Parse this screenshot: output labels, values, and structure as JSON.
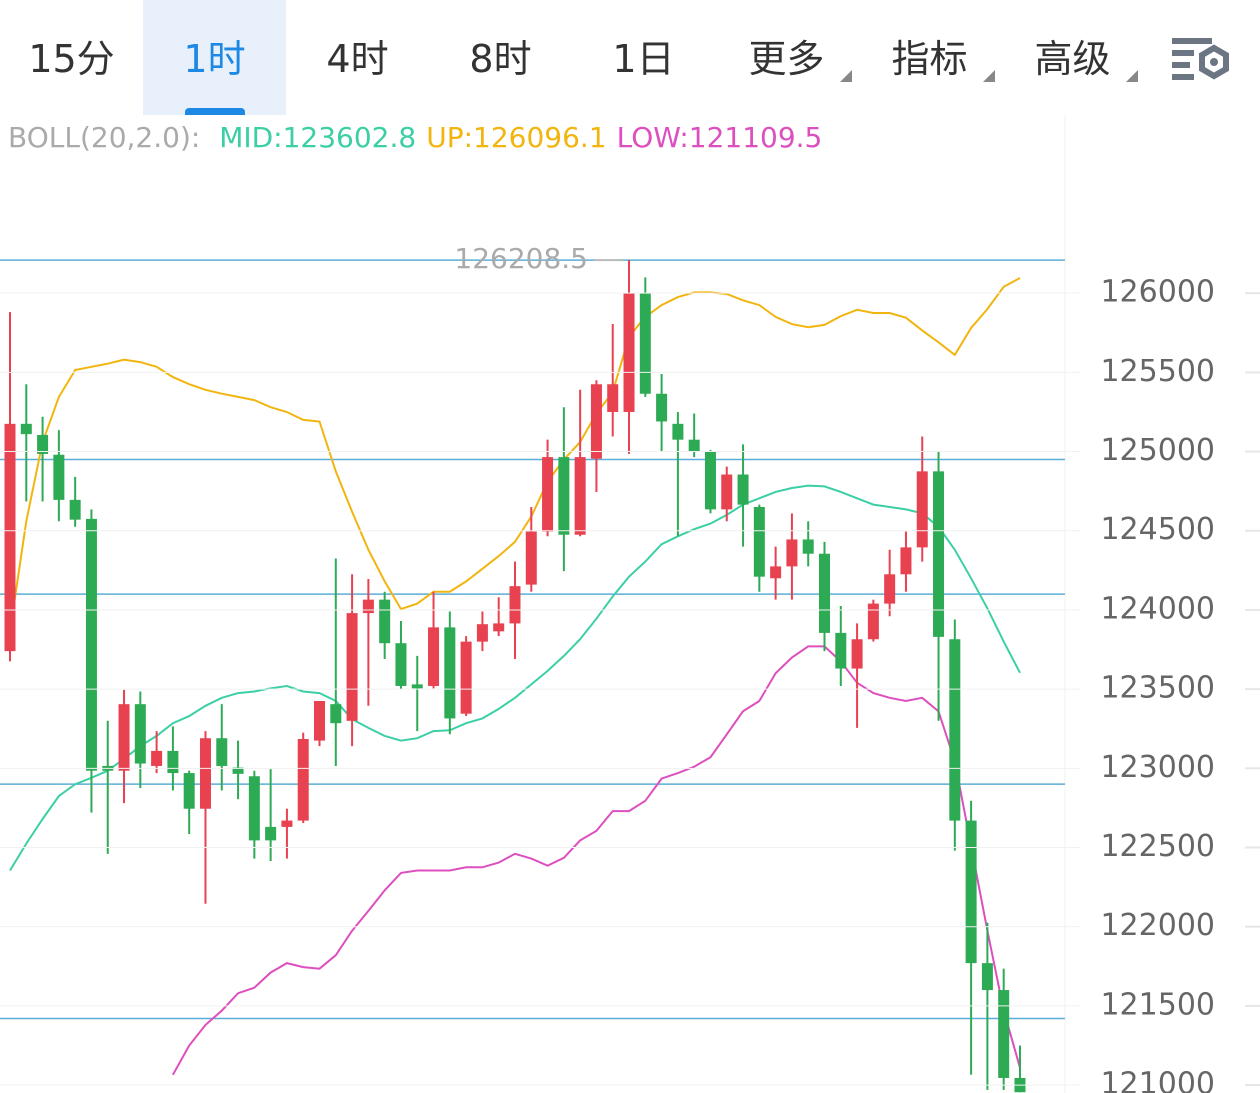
{
  "tabs": [
    {
      "label": "15分",
      "dropdown": false
    },
    {
      "label": "1时",
      "dropdown": false
    },
    {
      "label": "4时",
      "dropdown": false
    },
    {
      "label": "8时",
      "dropdown": false
    },
    {
      "label": "1日",
      "dropdown": false
    },
    {
      "label": "更多",
      "dropdown": true
    },
    {
      "label": "指标",
      "dropdown": true
    },
    {
      "label": "高级",
      "dropdown": true
    }
  ],
  "active_tab": 1,
  "chart_data": {
    "type": "candlestick",
    "indicator_label": "BOLL(20,2.0):",
    "up_color": "#e8414f",
    "down_color": "#2dab54",
    "open": [
      123740,
      125175,
      125105,
      124980,
      124695,
      124575,
      123015,
      122985,
      123405,
      123015,
      123110,
      122970,
      122745,
      123190,
      123005,
      122950,
      122630,
      122630,
      122670,
      123175,
      123405,
      123300,
      123980,
      124065,
      123790,
      123530,
      123520,
      123890,
      123345,
      123800,
      123865,
      123915,
      124160,
      124495,
      124965,
      124475,
      124955,
      125250,
      125250,
      126000,
      125365,
      125175,
      125075,
      125000,
      124635,
      124855,
      124650,
      124200,
      124275,
      124445,
      124355,
      123855,
      123630,
      123815,
      124040,
      124225,
      124395,
      124875,
      123815,
      122670,
      121770,
      121600,
      121045
    ],
    "high": [
      125880,
      125425,
      125220,
      125135,
      124840,
      124635,
      123300,
      123495,
      123485,
      123235,
      123265,
      122985,
      123235,
      123405,
      123175,
      122985,
      122995,
      122745,
      123225,
      123425,
      124325,
      124225,
      124195,
      124115,
      123930,
      123710,
      124115,
      123990,
      123835,
      123990,
      124080,
      124305,
      124650,
      125075,
      125280,
      125390,
      125450,
      125805,
      126208.5,
      126100,
      125490,
      125250,
      125240,
      125010,
      124905,
      125045,
      124665,
      124400,
      124610,
      124560,
      124430,
      124025,
      123915,
      124065,
      124380,
      124495,
      125095,
      125000,
      123940,
      122795,
      122025,
      121735,
      121250
    ],
    "low": [
      123675,
      124685,
      124685,
      124560,
      124525,
      122720,
      122460,
      122780,
      122875,
      122970,
      122860,
      122585,
      122145,
      122860,
      122805,
      122430,
      122415,
      122430,
      122655,
      123140,
      123015,
      123140,
      123395,
      123690,
      123500,
      123235,
      123505,
      123215,
      123330,
      123740,
      123835,
      123690,
      124115,
      124465,
      124245,
      124465,
      124745,
      125095,
      124985,
      125345,
      125000,
      124465,
      124965,
      124610,
      124560,
      124400,
      124115,
      124065,
      124065,
      124275,
      123740,
      123520,
      123255,
      123800,
      123960,
      124115,
      124305,
      123300,
      122480,
      121065,
      120970,
      120970,
      120955
    ],
    "close": [
      125175,
      125110,
      124985,
      124695,
      124570,
      122985,
      122985,
      123405,
      123030,
      123110,
      122970,
      122745,
      123190,
      123015,
      122965,
      122545,
      122545,
      122670,
      123185,
      123425,
      123285,
      123980,
      124065,
      123790,
      123520,
      123505,
      123890,
      123315,
      123800,
      123910,
      123915,
      124150,
      124495,
      124965,
      124475,
      124965,
      125425,
      125425,
      126000,
      125365,
      125190,
      125075,
      125000,
      124635,
      124855,
      124665,
      124210,
      124275,
      124445,
      124355,
      123855,
      123630,
      123815,
      124040,
      124225,
      124395,
      124875,
      123830,
      122670,
      121770,
      121600,
      121045,
      120955
    ],
    "series": [
      {
        "label": "MID:123602.8",
        "color": "#3ccfa6",
        "values": [
          122355,
          122525,
          122680,
          122825,
          122900,
          122940,
          122985,
          123060,
          123140,
          123205,
          123285,
          123330,
          123395,
          123445,
          123475,
          123485,
          123505,
          123520,
          123485,
          123475,
          123425,
          123310,
          123255,
          123205,
          123175,
          123190,
          123235,
          123240,
          123285,
          123315,
          123375,
          123445,
          123530,
          123615,
          123710,
          123815,
          123945,
          124085,
          124210,
          124305,
          124415,
          124465,
          124510,
          124545,
          124600,
          124665,
          124705,
          124745,
          124770,
          124785,
          124780,
          124745,
          124705,
          124665,
          124650,
          124635,
          124610,
          124525,
          124380,
          124200,
          124010,
          123800,
          123602.8
        ]
      },
      {
        "label": "UP:126096.1",
        "color": "#f2b50f",
        "values": [
          123865,
          124560,
          125060,
          125345,
          125515,
          125535,
          125555,
          125580,
          125565,
          125535,
          125470,
          125425,
          125390,
          125365,
          125345,
          125325,
          125280,
          125250,
          125200,
          125190,
          124875,
          124620,
          124380,
          124180,
          124005,
          124040,
          124115,
          124115,
          124180,
          124260,
          124340,
          124430,
          124590,
          124810,
          124950,
          125060,
          125240,
          125375,
          125725,
          125850,
          125925,
          125975,
          126005,
          126005,
          125995,
          125955,
          125925,
          125850,
          125805,
          125785,
          125800,
          125855,
          125895,
          125875,
          125875,
          125845,
          125765,
          125690,
          125610,
          125780,
          125900,
          126040,
          126096.1
        ]
      },
      {
        "label": "LOW:121109.5",
        "color": "#dd4fbf",
        "values": [
          null,
          null,
          null,
          null,
          null,
          null,
          null,
          null,
          null,
          null,
          121065,
          121250,
          121380,
          121470,
          121580,
          121615,
          121710,
          121770,
          121745,
          121735,
          121820,
          121975,
          122100,
          122230,
          122340,
          122355,
          122355,
          122355,
          122375,
          122375,
          122405,
          122460,
          122430,
          122385,
          122435,
          122545,
          122605,
          122730,
          122730,
          122795,
          122935,
          122970,
          123010,
          123070,
          123215,
          123360,
          123425,
          123600,
          123700,
          123770,
          123770,
          123675,
          123540,
          123475,
          123445,
          123425,
          123445,
          123360,
          123045,
          122510,
          121975,
          121470,
          121109.5
        ]
      }
    ],
    "ylim": [
      120950,
      127125
    ],
    "yticks": [
      121000,
      121500,
      122000,
      122500,
      123000,
      123500,
      124000,
      124500,
      125000,
      125500,
      126000
    ],
    "grid": true,
    "hlines": {
      "color": "#5aaed8",
      "values": [
        126208.5,
        124950,
        124100,
        122900,
        121420
      ]
    },
    "max_annotation": 126208.5
  }
}
